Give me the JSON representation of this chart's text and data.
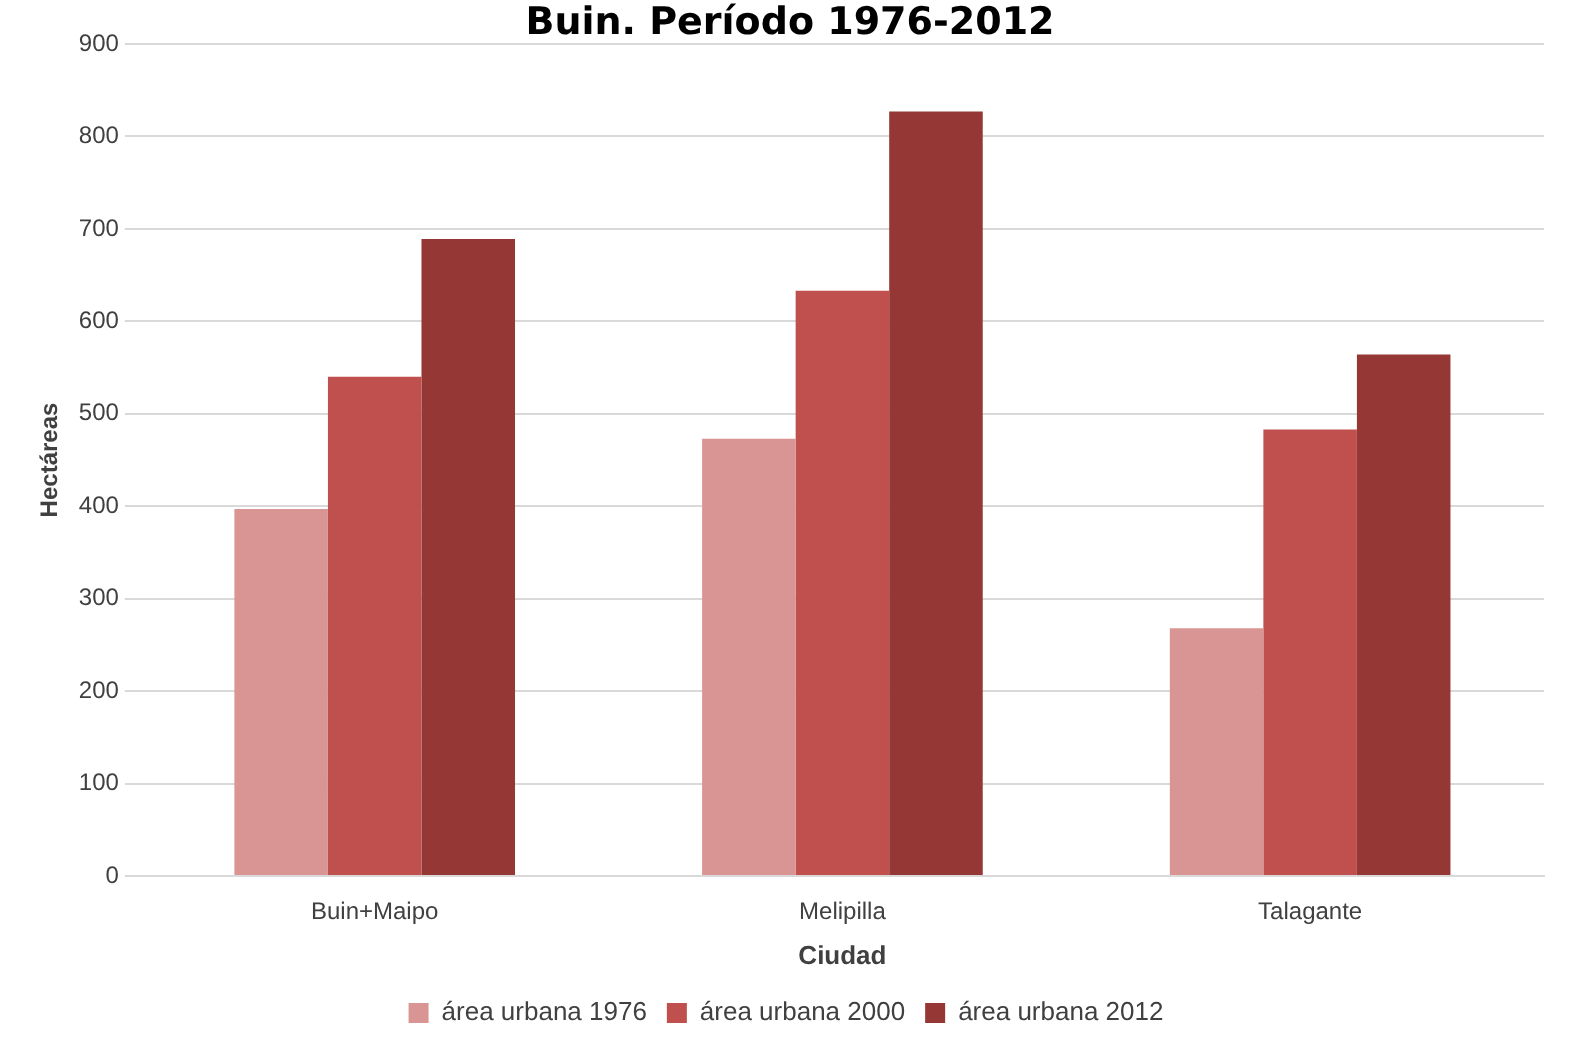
{
  "chart_data": {
    "type": "bar",
    "title": "Buin. Período 1976-2012",
    "xlabel": "Ciudad",
    "ylabel": "Hectáreas",
    "categories": [
      "Buin+Maipo",
      "Melipilla",
      "Talagante"
    ],
    "series": [
      {
        "name": "área urbana 1976",
        "color": "#d99594",
        "values": [
          397,
          473,
          268
        ]
      },
      {
        "name": "área urbana 2000",
        "color": "#c0504d",
        "values": [
          540,
          633,
          483
        ]
      },
      {
        "name": "área urbana 2012",
        "color": "#953735",
        "values": [
          689,
          827,
          564
        ]
      }
    ],
    "ylim": [
      0,
      900
    ],
    "yticks": [
      0,
      100,
      200,
      300,
      400,
      500,
      600,
      700,
      800,
      900
    ],
    "grid": "y",
    "legend": "bottom"
  }
}
